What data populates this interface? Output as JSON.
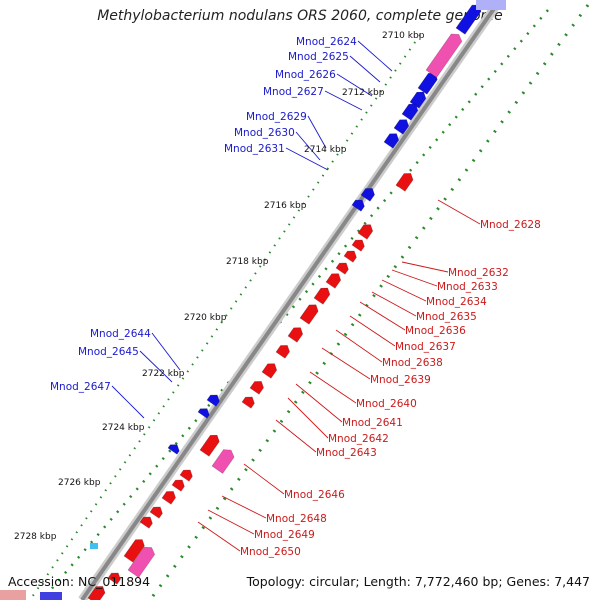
{
  "title": "Methylobacterium nodulans ORS 2060, complete genome",
  "accession": "Accession: NC_011894",
  "summary": "Topology: circular; Length: 7,772,460 bp; Genes: 7,447",
  "colors": {
    "forward_cds": "#1010e0",
    "reverse_cds": "#e81010",
    "reverse_rna": "#f050b0",
    "backbone": "#888888",
    "gc_dots": "#2a8a2a",
    "label_blue": "#1a1acc",
    "label_red": "#cc1a1a"
  },
  "scale_ticks": [
    "2710 kbp",
    "2712 kbp",
    "2714 kbp",
    "2716 kbp",
    "2718 kbp",
    "2720 kbp",
    "2722 kbp",
    "2724 kbp",
    "2726 kbp",
    "2728 kbp"
  ],
  "forward_labels": [
    "Mnod_2624",
    "Mnod_2625",
    "Mnod_2626",
    "Mnod_2627",
    "Mnod_2629",
    "Mnod_2630",
    "Mnod_2631",
    "Mnod_2644",
    "Mnod_2645",
    "Mnod_2647"
  ],
  "reverse_labels": [
    "Mnod_2628",
    "Mnod_2632",
    "Mnod_2633",
    "Mnod_2634",
    "Mnod_2635",
    "Mnod_2636",
    "Mnod_2637",
    "Mnod_2638",
    "Mnod_2639",
    "Mnod_2640",
    "Mnod_2641",
    "Mnod_2642",
    "Mnod_2643",
    "Mnod_2646",
    "Mnod_2648",
    "Mnod_2649",
    "Mnod_2650"
  ]
}
